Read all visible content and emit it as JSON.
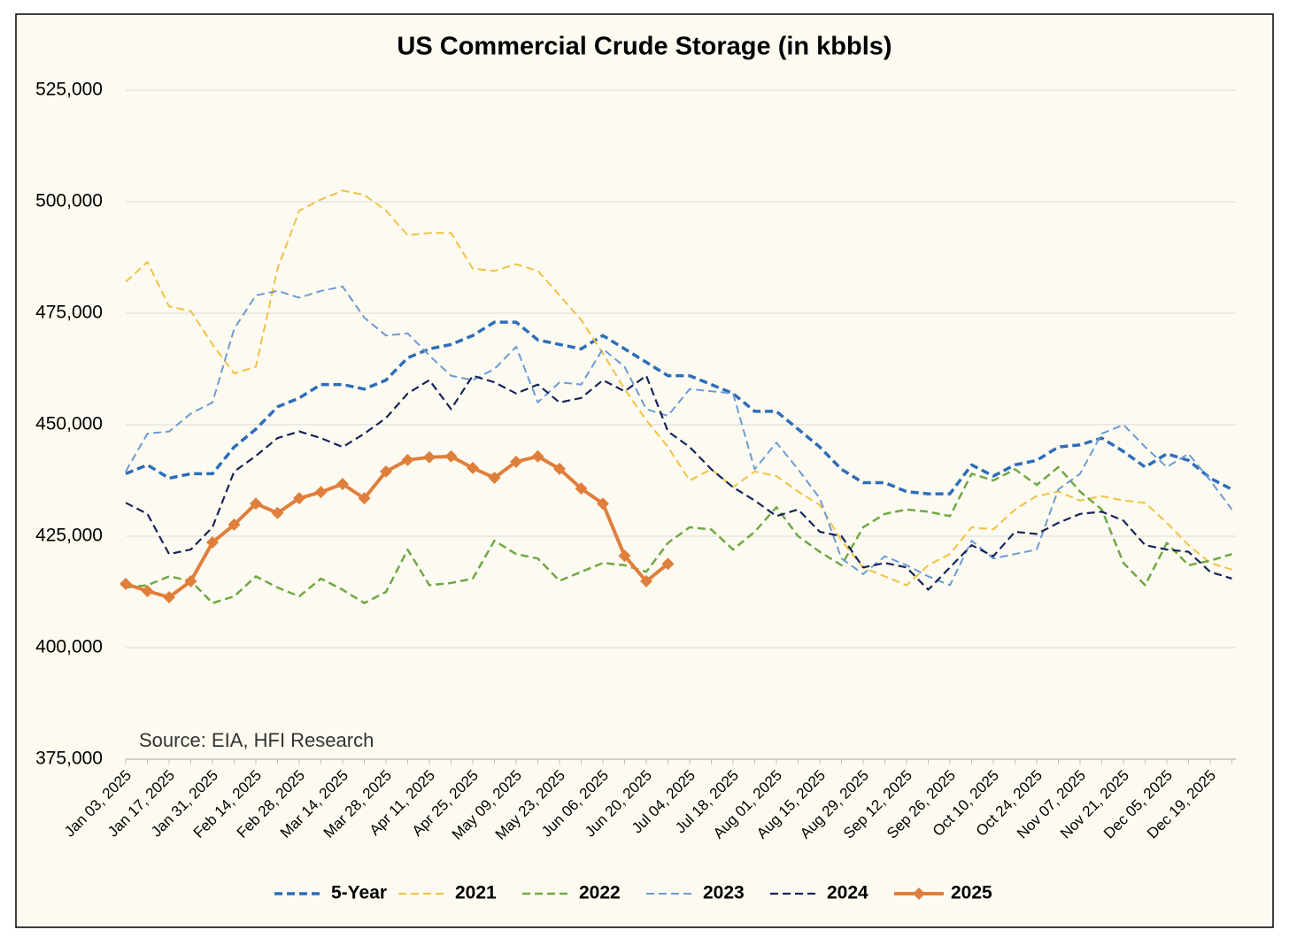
{
  "chart_data": {
    "type": "line",
    "title": "US Commercial Crude Storage (in kbbls)",
    "annotation": "Source: EIA, HFI Research",
    "categories": [
      "Jan 03, 2025",
      null,
      "Jan 17, 2025",
      null,
      "Jan 31, 2025",
      null,
      "Feb 14, 2025",
      null,
      "Feb 28, 2025",
      null,
      "Mar 14, 2025",
      null,
      "Mar 28, 2025",
      null,
      "Apr 11, 2025",
      null,
      "Apr 25, 2025",
      null,
      "May 09, 2025",
      null,
      "May 23, 2025",
      null,
      "Jun 06, 2025",
      null,
      "Jun 20, 2025",
      null,
      "Jul 04, 2025",
      null,
      "Jul 18, 2025",
      null,
      "Aug 01, 2025",
      null,
      "Aug 15, 2025",
      null,
      "Aug 29, 2025",
      null,
      "Sep 12, 2025",
      null,
      "Sep 26, 2025",
      null,
      "Oct 10, 2025",
      null,
      "Oct 24, 2025",
      null,
      "Nov 07, 2025",
      null,
      "Nov 21, 2025",
      null,
      "Dec 05, 2025",
      null,
      "Dec 19, 2025",
      null
    ],
    "ylim": [
      375000,
      525000
    ],
    "yticks": [
      {
        "value": 375000,
        "label": "375,000"
      },
      {
        "value": 400000,
        "label": "400,000"
      },
      {
        "value": 425000,
        "label": "425,000"
      },
      {
        "value": 450000,
        "label": "450,000"
      },
      {
        "value": 475000,
        "label": "475,000"
      },
      {
        "value": 500000,
        "label": "500,000"
      },
      {
        "value": 525000,
        "label": "525,000"
      }
    ],
    "grid": true,
    "legend": "bottom",
    "series": [
      {
        "name": "5-Year",
        "color": "#2e6db8",
        "dashed": true,
        "width": 3.5,
        "values": [
          439000,
          441000,
          438000,
          439000,
          439000,
          445000,
          449000,
          454000,
          456000,
          459000,
          459000,
          458000,
          460000,
          465000,
          467000,
          468000,
          470000,
          473000,
          473000,
          469000,
          468000,
          467000,
          470000,
          467000,
          464000,
          461000,
          461000,
          459000,
          457000,
          453000,
          453000,
          449000,
          445000,
          440000,
          437000,
          437000,
          435000,
          434500,
          434500,
          441000,
          438500,
          441000,
          442000,
          445000,
          445500,
          447000,
          444000,
          440500,
          443500,
          442000,
          438000,
          435500
        ]
      },
      {
        "name": "2021",
        "color": "#f2c142",
        "dashed": true,
        "width": 2,
        "values": [
          482000,
          486500,
          476500,
          475500,
          468000,
          461500,
          463000,
          485000,
          498000,
          500500,
          502500,
          501500,
          498000,
          492500,
          493000,
          493000,
          485000,
          484500,
          486000,
          484500,
          479000,
          473500,
          466000,
          458000,
          451000,
          445000,
          437500,
          440000,
          436000,
          439500,
          438500,
          435000,
          432000,
          424000,
          418000,
          416000,
          414000,
          418500,
          421000,
          427000,
          426500,
          431000,
          434000,
          435000,
          433000,
          434000,
          433000,
          432500,
          428000,
          423000,
          419000,
          417500
        ]
      },
      {
        "name": "2022",
        "color": "#70a845",
        "dashed": true,
        "width": 2.5,
        "values": [
          413500,
          414000,
          416000,
          415000,
          410000,
          411500,
          416000,
          413500,
          411500,
          415500,
          413000,
          410000,
          412500,
          422000,
          414000,
          414500,
          415500,
          424000,
          421000,
          420000,
          415000,
          417000,
          419000,
          418500,
          417000,
          423500,
          427000,
          426500,
          422000,
          426000,
          431500,
          425000,
          421500,
          418500,
          427000,
          430000,
          431000,
          430500,
          429500,
          439000,
          437500,
          440000,
          436500,
          440500,
          435000,
          431000,
          419000,
          414000,
          423500,
          418500,
          419500,
          421000
        ]
      },
      {
        "name": "2023",
        "color": "#6b9bd3",
        "dashed": true,
        "width": 2,
        "values": [
          439500,
          448000,
          448500,
          452500,
          455000,
          471500,
          479000,
          480000,
          478500,
          480000,
          481000,
          474000,
          470000,
          470500,
          465500,
          461000,
          460000,
          462500,
          467500,
          455000,
          459500,
          459000,
          467000,
          463000,
          453500,
          452000,
          458000,
          457500,
          457000,
          440000,
          446000,
          440000,
          433500,
          420000,
          416500,
          420500,
          418500,
          416000,
          414000,
          424000,
          420000,
          421000,
          422000,
          435500,
          439000,
          448000,
          450000,
          445000,
          440500,
          443500,
          437500,
          431000
        ]
      },
      {
        "name": "2024",
        "color": "#16245a",
        "dashed": true,
        "width": 2.2,
        "values": [
          432500,
          430000,
          421000,
          422000,
          427000,
          439500,
          443000,
          447000,
          448500,
          447000,
          445000,
          448000,
          451500,
          457000,
          460000,
          453500,
          461000,
          459500,
          457000,
          459000,
          455000,
          456000,
          460000,
          457500,
          461000,
          448500,
          445000,
          440000,
          436000,
          433000,
          429500,
          431000,
          426000,
          425000,
          418000,
          419000,
          418000,
          413000,
          418000,
          423000,
          420500,
          426000,
          425500,
          428000,
          430000,
          430500,
          428500,
          423000,
          422000,
          421500,
          417000,
          415500
        ]
      },
      {
        "name": "2025",
        "color": "#e07f3c",
        "dashed": false,
        "width": 4,
        "markers": "diamond",
        "values": [
          414300,
          412700,
          411300,
          414900,
          423600,
          427600,
          432300,
          430200,
          433500,
          434900,
          436700,
          433500,
          439500,
          442100,
          442700,
          442900,
          440300,
          438100,
          441700,
          442900,
          440100,
          435700,
          432300,
          420600,
          414900,
          418800,
          null,
          null,
          null,
          null,
          null,
          null,
          null,
          null,
          null,
          null,
          null,
          null,
          null,
          null,
          null,
          null,
          null,
          null,
          null,
          null,
          null,
          null,
          null,
          null,
          null,
          null
        ]
      }
    ]
  }
}
